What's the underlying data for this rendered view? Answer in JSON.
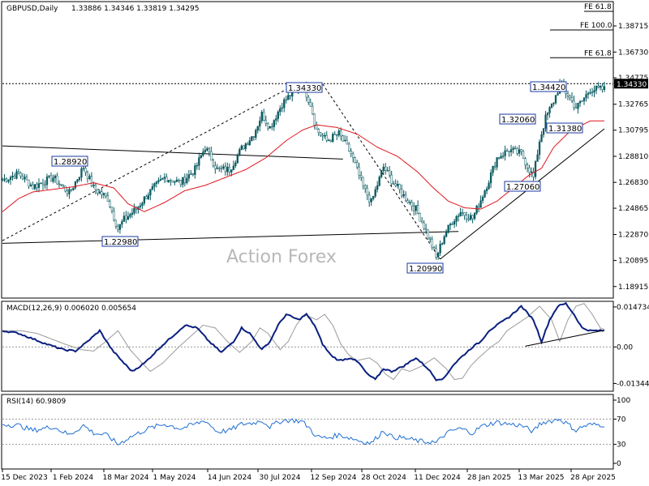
{
  "chart_data": [
    {
      "type": "candlestick",
      "header": {
        "symbol": "GBPUSD,Daily",
        "values": "1.33886 1.34346 1.33819 1.34295"
      },
      "watermark": "Action Forex",
      "ylim": [
        1.181,
        1.405
      ],
      "yticks": [
        "1.38715",
        "1.36730",
        "1.34775",
        "1.32765",
        "1.30795",
        "1.28810",
        "1.26830",
        "1.24865",
        "1.22870",
        "1.20895",
        "1.18915"
      ],
      "current_price_label": "1.34330",
      "price_labels": [
        {
          "text": "1.28920",
          "value": 1.2892
        },
        {
          "text": "1.22980",
          "value": 1.2298
        },
        {
          "text": "1.34330",
          "value": 1.3433
        },
        {
          "text": "1.20990",
          "value": 1.2099
        },
        {
          "text": "1.27060",
          "value": 1.2706
        },
        {
          "text": "1.32060",
          "value": 1.3206
        },
        {
          "text": "1.31380",
          "value": 1.3138
        },
        {
          "text": "1.34420",
          "value": 1.3442
        }
      ],
      "fib_levels": [
        {
          "text": "FE 61.8",
          "value": 1.4045
        },
        {
          "text": "FE 100.0",
          "value": 1.3841
        },
        {
          "text": "FE 61.8",
          "value": 1.363
        }
      ],
      "xticks": [
        "15 Dec 2023",
        "1 Feb 2024",
        "18 Mar 2024",
        "1 May 2024",
        "14 Jun 2024",
        "30 Jul 2024",
        "12 Sep 2024",
        "28 Oct 2024",
        "11 Dec 2024",
        "28 Jan 2025",
        "13 Mar 2025",
        "28 Apr 2025"
      ],
      "close_anchors": [
        [
          0,
          1.27
        ],
        [
          8,
          1.275
        ],
        [
          15,
          1.265
        ],
        [
          25,
          1.272
        ],
        [
          33,
          1.26
        ],
        [
          40,
          1.28
        ],
        [
          45,
          1.264
        ],
        [
          52,
          1.256
        ],
        [
          57,
          1.233
        ],
        [
          60,
          1.24
        ],
        [
          66,
          1.248
        ],
        [
          72,
          1.26
        ],
        [
          80,
          1.272
        ],
        [
          88,
          1.268
        ],
        [
          95,
          1.278
        ],
        [
          100,
          1.295
        ],
        [
          106,
          1.278
        ],
        [
          112,
          1.278
        ],
        [
          118,
          1.294
        ],
        [
          124,
          1.305
        ],
        [
          128,
          1.32
        ],
        [
          132,
          1.31
        ],
        [
          138,
          1.328
        ],
        [
          144,
          1.338
        ],
        [
          148,
          1.343
        ],
        [
          152,
          1.328
        ],
        [
          155,
          1.308
        ],
        [
          160,
          1.3
        ],
        [
          166,
          1.305
        ],
        [
          172,
          1.29
        ],
        [
          178,
          1.265
        ],
        [
          182,
          1.253
        ],
        [
          188,
          1.28
        ],
        [
          192,
          1.27
        ],
        [
          198,
          1.258
        ],
        [
          204,
          1.248
        ],
        [
          208,
          1.235
        ],
        [
          212,
          1.22
        ],
        [
          214,
          1.211
        ],
        [
          218,
          1.228
        ],
        [
          222,
          1.239
        ],
        [
          226,
          1.246
        ],
        [
          232,
          1.241
        ],
        [
          236,
          1.255
        ],
        [
          240,
          1.27
        ],
        [
          244,
          1.287
        ],
        [
          250,
          1.293
        ],
        [
          256,
          1.29
        ],
        [
          262,
          1.272
        ],
        [
          265,
          1.3
        ],
        [
          268,
          1.317
        ],
        [
          272,
          1.33
        ],
        [
          275,
          1.342
        ],
        [
          279,
          1.335
        ],
        [
          283,
          1.325
        ],
        [
          286,
          1.33
        ],
        [
          290,
          1.339
        ]
      ],
      "sma_anchors": [
        [
          0,
          1.246
        ],
        [
          8,
          1.256
        ],
        [
          15,
          1.261
        ],
        [
          25,
          1.263
        ],
        [
          35,
          1.265
        ],
        [
          45,
          1.268
        ],
        [
          55,
          1.264
        ],
        [
          62,
          1.252
        ],
        [
          70,
          1.246
        ],
        [
          80,
          1.253
        ],
        [
          90,
          1.262
        ],
        [
          100,
          1.266
        ],
        [
          110,
          1.272
        ],
        [
          120,
          1.278
        ],
        [
          130,
          1.287
        ],
        [
          140,
          1.3
        ],
        [
          148,
          1.308
        ],
        [
          155,
          1.312
        ],
        [
          165,
          1.31
        ],
        [
          175,
          1.305
        ],
        [
          185,
          1.295
        ],
        [
          195,
          1.288
        ],
        [
          205,
          1.276
        ],
        [
          212,
          1.265
        ],
        [
          220,
          1.254
        ],
        [
          228,
          1.249
        ],
        [
          236,
          1.248
        ],
        [
          244,
          1.254
        ],
        [
          252,
          1.264
        ],
        [
          260,
          1.274
        ],
        [
          266,
          1.279
        ],
        [
          272,
          1.295
        ],
        [
          280,
          1.307
        ],
        [
          290,
          1.315
        ]
      ],
      "trendlines": [
        {
          "from": [
            0,
            1.222
          ],
          "to": [
            225,
            1.231
          ],
          "ref": "sup1"
        },
        {
          "from": [
            0,
            1.296
          ],
          "to": [
            168,
            1.286
          ],
          "ref": "res1"
        },
        {
          "from": [
            0,
            1.224
          ],
          "to": [
            145,
            1.343
          ],
          "ref": "dash-up"
        },
        {
          "from": [
            158,
            1.343
          ],
          "to": [
            216,
            1.21
          ],
          "ref": "dash-down"
        },
        {
          "from": [
            216,
            1.21
          ],
          "to": [
            297,
            1.309
          ],
          "ref": "sup2"
        }
      ]
    },
    {
      "type": "line",
      "title": "MACD(12,26,9) 0.006020 0.005654",
      "ylim": [
        -0.016,
        0.0165
      ],
      "yticks": [
        {
          "text": "0.014734",
          "value": 0.014734
        },
        {
          "text": "0.00",
          "value": 0.0
        },
        {
          "text": "-0.013442",
          "value": -0.013442
        }
      ],
      "macd_anchors": [
        [
          0,
          0.006
        ],
        [
          8,
          0.005
        ],
        [
          15,
          0.003
        ],
        [
          22,
          0.001
        ],
        [
          30,
          -0.001
        ],
        [
          36,
          -0.0015
        ],
        [
          42,
          0.002
        ],
        [
          48,
          0.006
        ],
        [
          54,
          -0.001
        ],
        [
          60,
          -0.006
        ],
        [
          64,
          -0.009
        ],
        [
          70,
          -0.006
        ],
        [
          78,
          0.0
        ],
        [
          84,
          0.004
        ],
        [
          90,
          0.008
        ],
        [
          96,
          0.007
        ],
        [
          102,
          0.002
        ],
        [
          108,
          -0.002
        ],
        [
          114,
          0.002
        ],
        [
          118,
          0.007
        ],
        [
          122,
          0.005
        ],
        [
          128,
          -0.001
        ],
        [
          132,
          0.002
        ],
        [
          136,
          0.008
        ],
        [
          140,
          0.012
        ],
        [
          146,
          0.01
        ],
        [
          150,
          0.012
        ],
        [
          154,
          0.008
        ],
        [
          158,
          0.001
        ],
        [
          162,
          -0.003
        ],
        [
          166,
          -0.005
        ],
        [
          172,
          -0.004
        ],
        [
          176,
          -0.006
        ],
        [
          180,
          -0.01
        ],
        [
          184,
          -0.012
        ],
        [
          188,
          -0.008
        ],
        [
          192,
          -0.009
        ],
        [
          198,
          -0.007
        ],
        [
          204,
          -0.004
        ],
        [
          210,
          -0.008
        ],
        [
          214,
          -0.012
        ],
        [
          218,
          -0.0115
        ],
        [
          222,
          -0.007
        ],
        [
          226,
          -0.004
        ],
        [
          232,
          0.0
        ],
        [
          236,
          0.002
        ],
        [
          240,
          0.006
        ],
        [
          244,
          0.008
        ],
        [
          250,
          0.011
        ],
        [
          256,
          0.015
        ],
        [
          262,
          0.01
        ],
        [
          266,
          0.002
        ],
        [
          270,
          0.01
        ],
        [
          274,
          0.015
        ],
        [
          278,
          0.016
        ],
        [
          282,
          0.012
        ],
        [
          286,
          0.007
        ],
        [
          290,
          0.006
        ]
      ],
      "signal_lag": 3,
      "trendline": {
        "from": [
          258,
          0.0003
        ],
        "to": [
          296,
          0.006
        ]
      }
    },
    {
      "type": "line",
      "title": "RSI(14) 60.9809",
      "ylim": [
        0,
        100
      ],
      "yticks": [
        {
          "text": "100",
          "value": 100
        },
        {
          "text": "70",
          "value": 70
        },
        {
          "text": "30",
          "value": 30
        },
        {
          "text": "0",
          "value": 0
        }
      ],
      "rsi_anchors": [
        [
          0,
          62
        ],
        [
          8,
          60
        ],
        [
          15,
          52
        ],
        [
          25,
          58
        ],
        [
          33,
          45
        ],
        [
          40,
          60
        ],
        [
          45,
          48
        ],
        [
          52,
          44
        ],
        [
          57,
          30
        ],
        [
          62,
          40
        ],
        [
          66,
          46
        ],
        [
          72,
          55
        ],
        [
          80,
          62
        ],
        [
          88,
          55
        ],
        [
          95,
          62
        ],
        [
          100,
          68
        ],
        [
          106,
          50
        ],
        [
          112,
          52
        ],
        [
          118,
          62
        ],
        [
          124,
          64
        ],
        [
          128,
          68
        ],
        [
          132,
          58
        ],
        [
          138,
          68
        ],
        [
          144,
          68
        ],
        [
          148,
          66
        ],
        [
          152,
          54
        ],
        [
          155,
          42
        ],
        [
          160,
          40
        ],
        [
          166,
          45
        ],
        [
          172,
          40
        ],
        [
          178,
          34
        ],
        [
          182,
          32
        ],
        [
          188,
          52
        ],
        [
          192,
          42
        ],
        [
          198,
          40
        ],
        [
          204,
          36
        ],
        [
          208,
          34
        ],
        [
          212,
          34
        ],
        [
          214,
          32
        ],
        [
          218,
          45
        ],
        [
          222,
          52
        ],
        [
          226,
          55
        ],
        [
          232,
          48
        ],
        [
          236,
          58
        ],
        [
          240,
          62
        ],
        [
          244,
          65
        ],
        [
          250,
          62
        ],
        [
          256,
          60
        ],
        [
          262,
          50
        ],
        [
          265,
          62
        ],
        [
          268,
          66
        ],
        [
          272,
          68
        ],
        [
          275,
          70
        ],
        [
          279,
          62
        ],
        [
          283,
          52
        ],
        [
          286,
          58
        ],
        [
          290,
          61
        ]
      ]
    }
  ]
}
